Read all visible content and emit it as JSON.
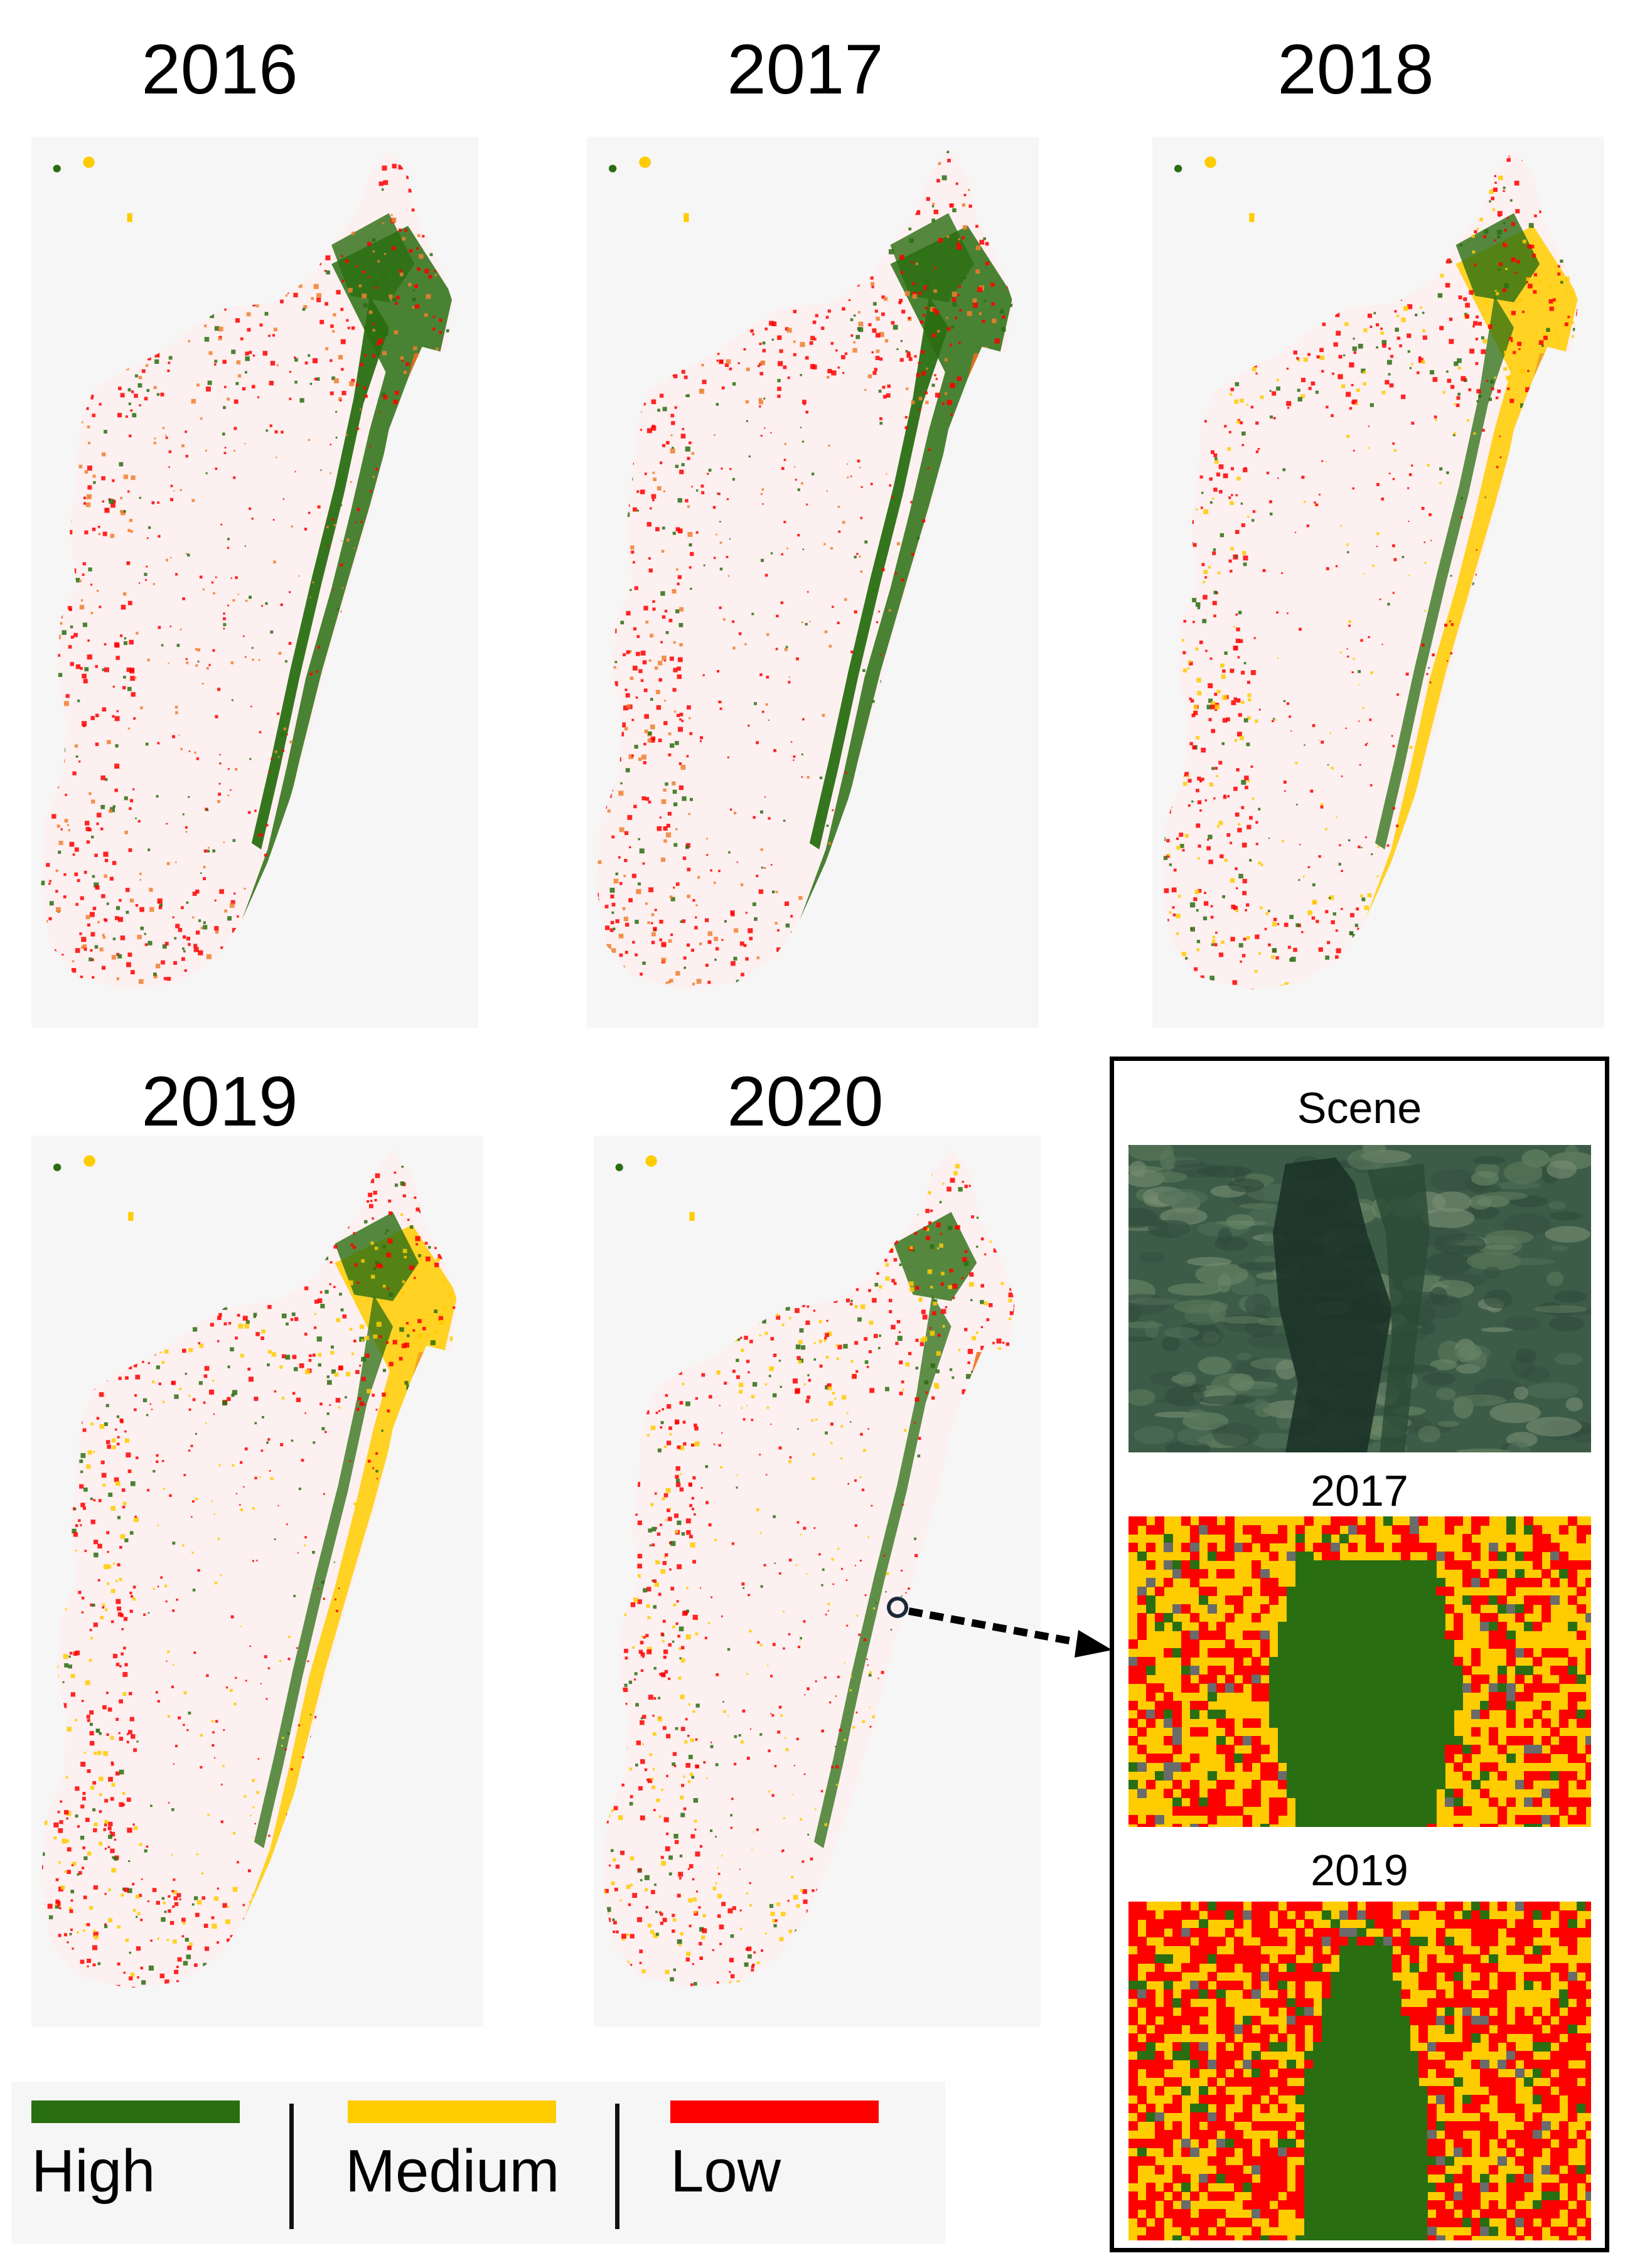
{
  "panels": [
    {
      "year": "2016"
    },
    {
      "year": "2017"
    },
    {
      "year": "2018"
    },
    {
      "year": "2019"
    },
    {
      "year": "2020"
    }
  ],
  "inset": {
    "scene_label": "Scene",
    "top_label": "2017",
    "bottom_label": "2019"
  },
  "legend": {
    "items": [
      {
        "label": "High",
        "color": "#2a6e12"
      },
      {
        "label": "Medium",
        "color": "#ffcc00"
      },
      {
        "label": "Low",
        "color": "#ff0000"
      }
    ]
  },
  "colors": {
    "high": "#2a6e12",
    "medium": "#ffcc00",
    "low": "#ff0000",
    "land": "#fdf0f0",
    "panel_bg": "#f6f6f6"
  }
}
